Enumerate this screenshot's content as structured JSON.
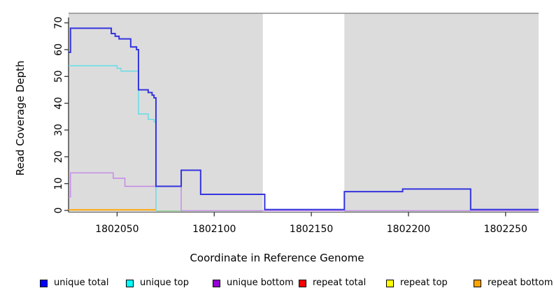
{
  "figure": {
    "x_axis_label": "Coordinate in Reference Genome",
    "y_axis_label": "Read Coverage Depth"
  },
  "chart_data": {
    "type": "line",
    "subtype": "step",
    "title": "",
    "xlabel": "Coordinate in Reference Genome",
    "ylabel": "Read Coverage Depth",
    "xlim": [
      1802025,
      1802267
    ],
    "ylim": [
      0,
      73
    ],
    "x_ticks": [
      1802050,
      1802100,
      1802150,
      1802200,
      1802250
    ],
    "y_ticks": [
      0,
      10,
      20,
      30,
      40,
      50,
      60,
      70
    ],
    "grid": false,
    "band_color": "#DCDCDC",
    "band_top_border_color": "#8E8E8E",
    "shaded_regions": [
      {
        "from": 1802025,
        "to": 1802125
      },
      {
        "from": 1802167,
        "to": 1802267
      }
    ],
    "white_gap": {
      "from": 1802125,
      "to": 1802167
    },
    "series": [
      {
        "name": "zero-line-left",
        "legend": false,
        "line_color": "#8FCF8F",
        "points": [
          [
            1802070,
            0
          ],
          [
            1802125,
            0
          ]
        ]
      },
      {
        "name": "zero-line-right",
        "legend": false,
        "line_color": "#8FCF8F",
        "points": [
          [
            1802167,
            0
          ],
          [
            1802232,
            0
          ]
        ]
      },
      {
        "name": "repeat bottom",
        "legend": true,
        "line_color": "#FFA500",
        "points": [
          [
            1802025,
            0
          ],
          [
            1802070,
            0
          ]
        ]
      },
      {
        "name": "unique top",
        "legend": true,
        "line_color": "#5FDDE8",
        "points": [
          [
            1802025,
            54
          ],
          [
            1802050,
            53
          ],
          [
            1802052,
            52
          ],
          [
            1802061,
            36
          ],
          [
            1802066,
            34
          ],
          [
            1802069,
            33
          ],
          [
            1802070,
            0
          ]
        ]
      },
      {
        "name": "unique bottom",
        "legend": true,
        "line_color": "#C388E8",
        "points": [
          [
            1802025,
            5
          ],
          [
            1802026,
            14
          ],
          [
            1802048,
            12
          ],
          [
            1802054,
            9
          ],
          [
            1802083,
            0
          ],
          [
            1802267,
            0
          ]
        ]
      },
      {
        "name": "unique total",
        "legend": true,
        "line_color": "#3434DE",
        "points": [
          [
            1802025,
            59
          ],
          [
            1802026,
            68
          ],
          [
            1802047,
            66
          ],
          [
            1802049,
            65
          ],
          [
            1802051,
            64
          ],
          [
            1802057,
            61
          ],
          [
            1802060,
            60
          ],
          [
            1802061,
            45
          ],
          [
            1802066,
            44
          ],
          [
            1802068,
            43
          ],
          [
            1802069,
            42
          ],
          [
            1802070,
            9
          ],
          [
            1802083,
            15
          ],
          [
            1802093,
            6
          ],
          [
            1802126,
            0
          ],
          [
            1802167,
            7
          ],
          [
            1802197,
            8
          ],
          [
            1802232,
            0
          ],
          [
            1802267,
            0
          ]
        ]
      },
      {
        "name": "repeat total",
        "legend": true,
        "line_color": "#FF0000",
        "points": []
      },
      {
        "name": "repeat top",
        "legend": true,
        "line_color": "#FFFF00",
        "points": []
      }
    ],
    "legend_position": "bottom",
    "legend": [
      {
        "label": "unique total",
        "color": "#0000FF"
      },
      {
        "label": "unique top",
        "color": "#00FFFF"
      },
      {
        "label": "unique bottom",
        "color": "#9400D3"
      },
      {
        "label": "repeat total",
        "color": "#FF0000"
      },
      {
        "label": "repeat top",
        "color": "#FFFF00"
      },
      {
        "label": "repeat bottom",
        "color": "#FFA500"
      }
    ]
  }
}
